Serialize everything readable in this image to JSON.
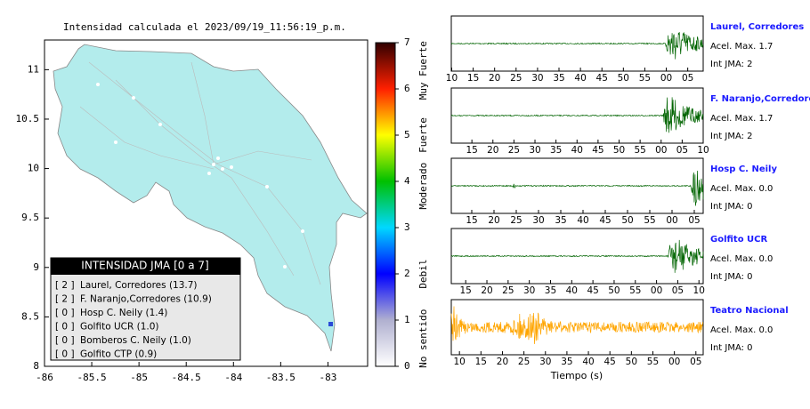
{
  "map": {
    "title": "Intensidad calculada el 2023/09/19_11:56:19_p.m.",
    "xlim": [
      -86,
      -82.58
    ],
    "ylim": [
      8,
      11.3
    ],
    "xticks": [
      -86,
      -85.5,
      -85,
      -84.5,
      -84,
      -83.5,
      -83
    ],
    "yticks": [
      8,
      8.5,
      9,
      9.5,
      10,
      10.5,
      11
    ],
    "land_color": "#b3ecec",
    "legend": {
      "title": "INTENSIDAD JMA [0 a 7]",
      "entries": [
        {
          "level": "[ 2 ]",
          "label": "Laurel, Corredores (13.7)"
        },
        {
          "level": "[ 2 ]",
          "label": "F. Naranjo,Corredores (10.9)"
        },
        {
          "level": "[ 0 ]",
          "label": "Hosp C. Neily (1.4)"
        },
        {
          "level": "[ 0 ]",
          "label": "Golfito UCR (1.0)"
        },
        {
          "level": "[ 0 ]",
          "label": "Bomberos C. Neily (1.0)"
        },
        {
          "level": "[ 0 ]",
          "label": "Golfito CTP (0.9)"
        }
      ]
    }
  },
  "colorbar": {
    "lim": [
      0,
      7
    ],
    "ticks": [
      0,
      1,
      2,
      3,
      4,
      5,
      6,
      7
    ],
    "colors": [
      "#ffffff",
      "#b0b0d0",
      "#0000ff",
      "#00d8ff",
      "#00c000",
      "#ffff00",
      "#ff2000",
      "#300000"
    ],
    "classes": [
      {
        "value": 0.6,
        "label": "No sentido"
      },
      {
        "value": 2,
        "label": "Debil"
      },
      {
        "value": 3.9,
        "label": "Moderado"
      },
      {
        "value": 5,
        "label": "Fuerte"
      },
      {
        "value": 6.4,
        "label": "Muy Fuerte"
      }
    ]
  },
  "traces": {
    "xlabel": "Tiempo (s)",
    "items": [
      {
        "name": "Laurel, Corredores",
        "acel": "Acel. Max. 1.7",
        "int": "Int JMA: 2",
        "color": "#006400",
        "xlim": [
          9.9,
          68.6
        ],
        "xticks": [
          10,
          15,
          20,
          25,
          30,
          35,
          40,
          45,
          50,
          55,
          {
            "value": 60,
            "label": "00"
          },
          {
            "value": 65,
            "label": "05"
          }
        ]
      },
      {
        "name": "F. Naranjo,Corredores",
        "acel": "Acel. Max. 1.7",
        "int": "Int JMA: 2",
        "color": "#006400",
        "xlim": [
          10.1,
          70
        ],
        "xticks": [
          15,
          20,
          25,
          30,
          35,
          40,
          45,
          50,
          55,
          {
            "value": 60,
            "label": "00"
          },
          {
            "value": 65,
            "label": "05"
          },
          {
            "value": 70,
            "label": "10"
          }
        ]
      },
      {
        "name": "Hosp C. Neily",
        "acel": "Acel. Max. 0.0",
        "int": "Int JMA: 0",
        "color": "#006400",
        "xlim": [
          10.4,
          67
        ],
        "xticks": [
          15,
          20,
          25,
          30,
          35,
          40,
          45,
          50,
          55,
          {
            "value": 60,
            "label": "00"
          },
          {
            "value": 65,
            "label": "05"
          }
        ]
      },
      {
        "name": "Golfito UCR",
        "acel": "Acel. Max. 0.0",
        "int": "Int JMA: 0",
        "color": "#006400",
        "xlim": [
          11.6,
          71
        ],
        "xticks": [
          15,
          20,
          25,
          30,
          35,
          40,
          45,
          50,
          55,
          {
            "value": 60,
            "label": "00"
          },
          {
            "value": 65,
            "label": "05"
          },
          {
            "value": 70,
            "label": "10"
          }
        ]
      },
      {
        "name": "Teatro Nacional",
        "acel": "Acel. Max. 0.0",
        "int": "Int JMA: 0",
        "color": "#ffa500",
        "xlim": [
          8.1,
          66.7
        ],
        "xticks": [
          10,
          15,
          20,
          25,
          30,
          35,
          40,
          45,
          50,
          55,
          {
            "value": 60,
            "label": "00"
          },
          {
            "value": 65,
            "label": "05"
          }
        ]
      }
    ]
  }
}
